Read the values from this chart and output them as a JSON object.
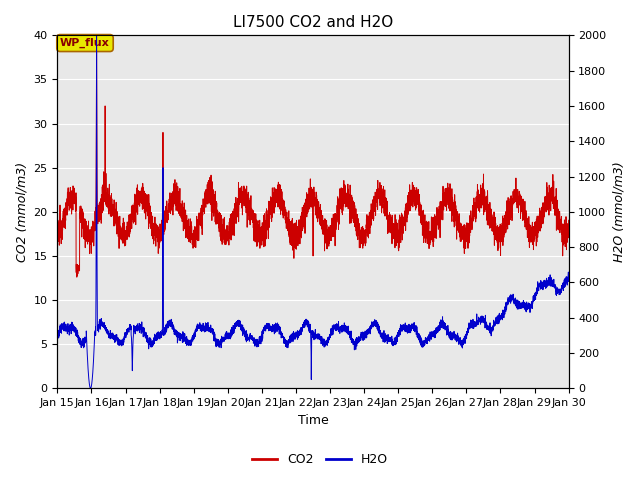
{
  "title": "LI7500 CO2 and H2O",
  "xlabel": "Time",
  "ylabel_left": "CO2 (mmol/m3)",
  "ylabel_right": "H2O (mmol/m3)",
  "xlim_days": [
    15,
    30
  ],
  "ylim_left": [
    0,
    40
  ],
  "ylim_right": [
    0,
    2000
  ],
  "xtick_labels": [
    "Jan 15",
    "Jan 16",
    "Jan 17",
    "Jan 18",
    "Jan 19",
    "Jan 20",
    "Jan 21",
    "Jan 22",
    "Jan 23",
    "Jan 24",
    "Jan 25",
    "Jan 26",
    "Jan 27",
    "Jan 28",
    "Jan 29",
    "Jan 30"
  ],
  "yticks_left": [
    0,
    5,
    10,
    15,
    20,
    25,
    30,
    35,
    40
  ],
  "yticks_right": [
    0,
    200,
    400,
    600,
    800,
    1000,
    1200,
    1400,
    1600,
    1800,
    2000
  ],
  "co2_color": "#cc0000",
  "h2o_color": "#0000cc",
  "bg_color": "#e8e8e8",
  "annotation_text": "WP_flux",
  "annotation_facecolor": "#e8e800",
  "annotation_edgecolor": "#aa6600",
  "annotation_textcolor": "#880000",
  "legend_co2": "CO2",
  "legend_h2o": "H2O",
  "title_fontsize": 11,
  "axis_label_fontsize": 9,
  "tick_fontsize": 8,
  "legend_fontsize": 9
}
